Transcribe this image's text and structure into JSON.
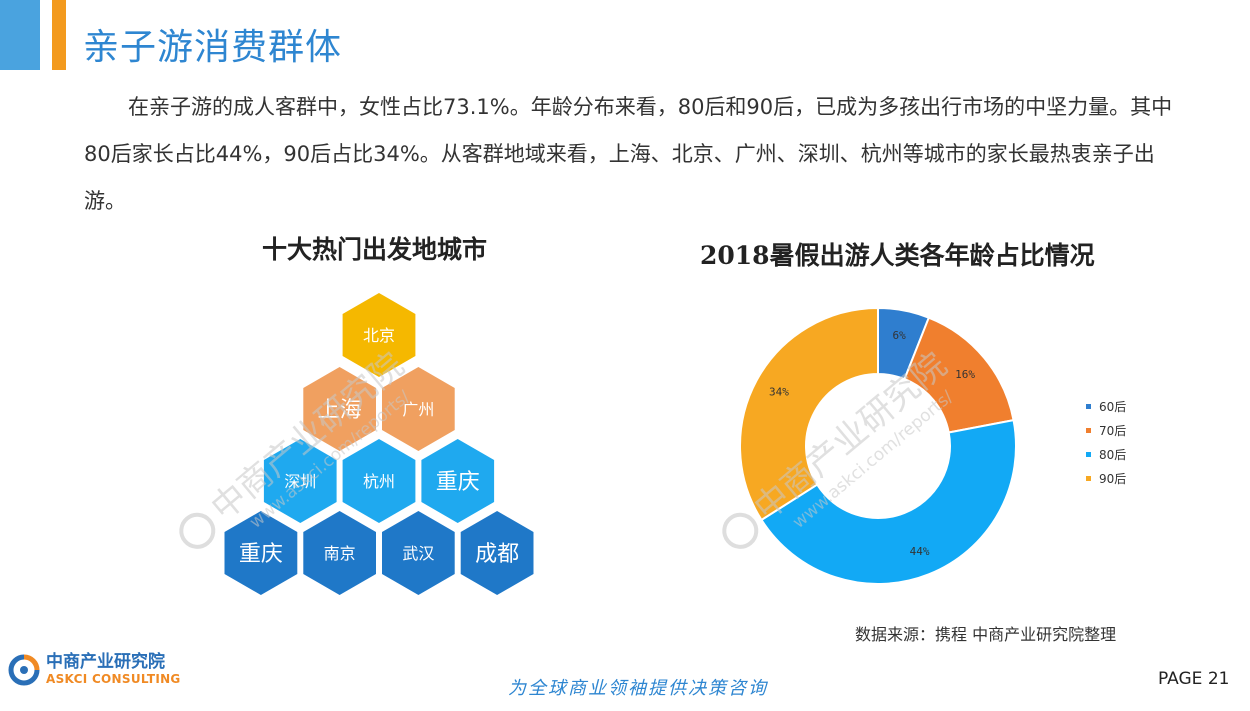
{
  "title": "亲子游消费群体",
  "intro": "在亲子游的成人客群中，女性占比73.1%。年龄分布来看，80后和90后，已成为多孩出行市场的中坚力量。其中80后家长占比44%，90后占比34%。从客群地域来看，上海、北京、广州、深圳、杭州等城市的家长最热衷亲子出游。",
  "left_panel": {
    "title": "十大热门出发地城市",
    "cities": [
      {
        "label": "北京",
        "color": "#f5b800",
        "row": 1
      },
      {
        "label": "上海",
        "color": "#f0a060",
        "row": 2
      },
      {
        "label": "广州",
        "color": "#f0a060",
        "row": 2
      },
      {
        "label": "深圳",
        "color": "#1fa9ef",
        "row": 3
      },
      {
        "label": "杭州",
        "color": "#1fa9ef",
        "row": 3
      },
      {
        "label": "重庆",
        "color": "#1fa9ef",
        "row": 3
      },
      {
        "label": "重庆",
        "color": "#1f78c8",
        "row": 4
      },
      {
        "label": "南京",
        "color": "#1f78c8",
        "row": 4
      },
      {
        "label": "武汉",
        "color": "#1f78c8",
        "row": 4
      },
      {
        "label": "成都",
        "color": "#1f78c8",
        "row": 4
      }
    ]
  },
  "chart_data": {
    "type": "pie",
    "donut": true,
    "title": "2018暑假出游人类各年龄占比情况",
    "categories": [
      "60后",
      "70后",
      "80后",
      "90后"
    ],
    "values": [
      6,
      16,
      44,
      34
    ],
    "labels": [
      "6%",
      "16%",
      "44%",
      "34%"
    ],
    "colors": [
      "#2f7ecf",
      "#f07f2e",
      "#12a9f5",
      "#f7a822"
    ],
    "legend_position": "right"
  },
  "source": "数据来源：携程 中商产业研究院整理",
  "footer": {
    "logo_cn": "中商产业研究院",
    "logo_en": "ASKCI CONSULTING",
    "slogan": "为全球商业领袖提供决策咨询",
    "page": "PAGE  21"
  },
  "watermark": {
    "cn": "中商产业研究院",
    "url": "www.askci.com/reports/"
  }
}
